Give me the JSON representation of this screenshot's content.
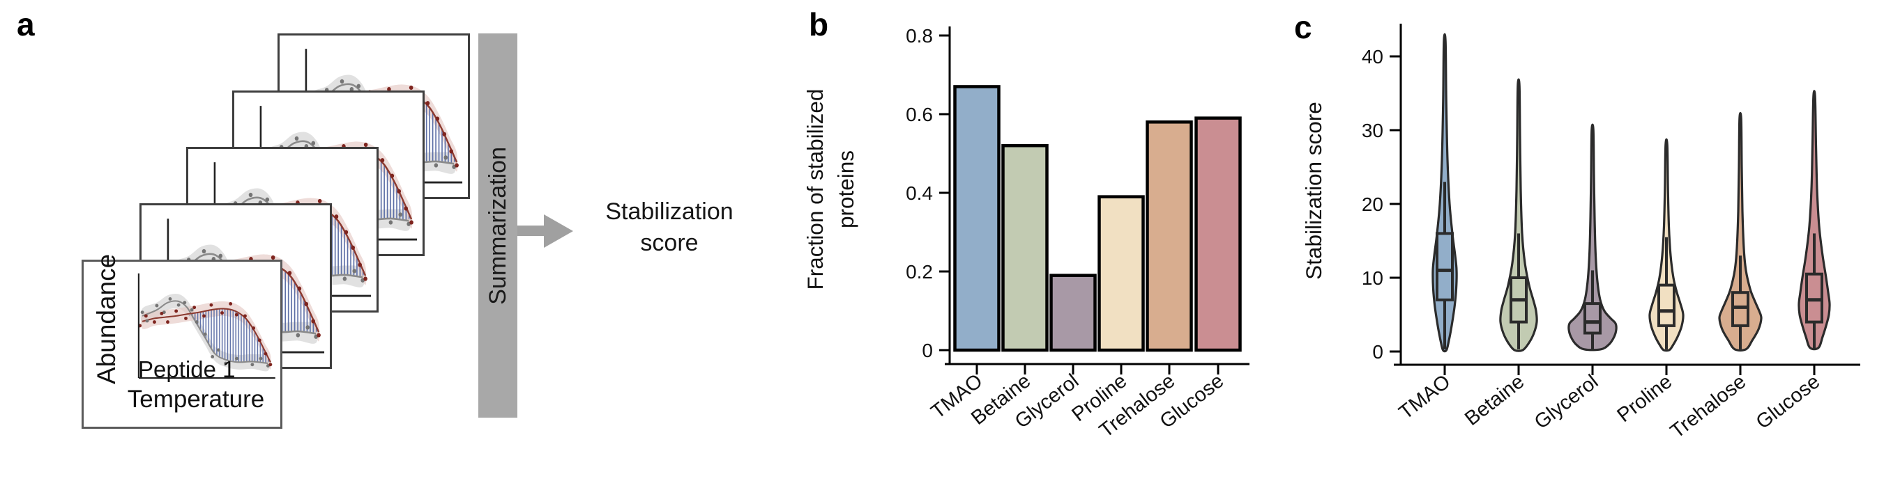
{
  "panels": {
    "a": {
      "label": "a",
      "front_card": {
        "y_axis_label": "Abundance",
        "series_label": "Peptide 1",
        "x_axis_label": "Temperature"
      },
      "card_count": 5,
      "summarization_label": "Summarization",
      "output_label": [
        "Stabilization",
        "score"
      ]
    },
    "b": {
      "label": "b"
    },
    "c": {
      "label": "c"
    }
  },
  "chart_data": [
    {
      "id": "b",
      "type": "bar",
      "title": "",
      "xlabel": "",
      "ylabel": "Fraction of stabilized proteins",
      "ylabel_lines": [
        "Fraction of stabilized",
        "proteins"
      ],
      "categories": [
        "TMAO",
        "Betaine",
        "Glycerol",
        "Proline",
        "Trehalose",
        "Glucose"
      ],
      "values": [
        0.67,
        0.52,
        0.19,
        0.39,
        0.58,
        0.59
      ],
      "yticks": [
        0,
        0.2,
        0.4,
        0.6,
        0.8
      ],
      "ytick_labels": [
        "0",
        "0.2",
        "0.4",
        "0.6",
        "0.8"
      ],
      "ylim": [
        0,
        0.83
      ],
      "grid": false,
      "legend": null,
      "bar_colors": [
        "#92aec9",
        "#c2cbb2",
        "#a899a6",
        "#f1e0c2",
        "#d8ad8f",
        "#ca8e92"
      ]
    },
    {
      "id": "c",
      "type": "violin",
      "title": "",
      "xlabel": "",
      "ylabel": "Stabilization score",
      "categories": [
        "TMAO",
        "Betaine",
        "Glycerol",
        "Proline",
        "Trehalose",
        "Glucose"
      ],
      "yticks": [
        0,
        10,
        20,
        30,
        40
      ],
      "ytick_labels": [
        "0",
        "10",
        "20",
        "30",
        "40"
      ],
      "ylim": [
        0,
        44
      ],
      "grid": false,
      "colors": [
        "#92aec9",
        "#c2cbb2",
        "#a899a6",
        "#f1e0c2",
        "#d8ad8f",
        "#ca8e92"
      ],
      "series": [
        {
          "name": "TMAO",
          "max": 42,
          "whisker_high": 23,
          "q3": 16,
          "median": 11,
          "q1": 7,
          "whisker_low": 0.3,
          "profile": [
            [
              42,
              1.2
            ],
            [
              34,
              2.2
            ],
            [
              26,
              4
            ],
            [
              20,
              7
            ],
            [
              16,
              11
            ],
            [
              13,
              15
            ],
            [
              11,
              17
            ],
            [
              8.5,
              16.5
            ],
            [
              6,
              14
            ],
            [
              3.5,
              10
            ],
            [
              1.5,
              6
            ],
            [
              0.2,
              2.5
            ]
          ]
        },
        {
          "name": "Betaine",
          "max": 36,
          "whisker_high": 16,
          "q3": 10,
          "median": 7,
          "q1": 4,
          "whisker_low": 0.3,
          "profile": [
            [
              36,
              1.2
            ],
            [
              29,
              2
            ],
            [
              22,
              3
            ],
            [
              16,
              5
            ],
            [
              12,
              9
            ],
            [
              9,
              15
            ],
            [
              7,
              21
            ],
            [
              5.5,
              25
            ],
            [
              4,
              26
            ],
            [
              2.5,
              22
            ],
            [
              1.2,
              15
            ],
            [
              0.2,
              6
            ]
          ]
        },
        {
          "name": "Glycerol",
          "max": 30,
          "whisker_high": 11,
          "q3": 6.5,
          "median": 4,
          "q1": 2.5,
          "whisker_low": 0.3,
          "profile": [
            [
              30,
              1.2
            ],
            [
              24,
              2
            ],
            [
              18,
              3
            ],
            [
              13,
              4.5
            ],
            [
              9.5,
              7
            ],
            [
              7,
              11
            ],
            [
              5.5,
              17
            ],
            [
              4.5,
              26
            ],
            [
              3.8,
              33
            ],
            [
              3,
              34
            ],
            [
              2,
              31
            ],
            [
              1,
              24
            ],
            [
              0.3,
              12
            ]
          ]
        },
        {
          "name": "Proline",
          "max": 28,
          "whisker_high": 15.5,
          "q3": 9,
          "median": 5.5,
          "q1": 3.5,
          "whisker_low": 0.3,
          "profile": [
            [
              28,
              1.2
            ],
            [
              22,
              2.2
            ],
            [
              17,
              3.5
            ],
            [
              13,
              6
            ],
            [
              10,
              10
            ],
            [
              8,
              15
            ],
            [
              6.5,
              20
            ],
            [
              5,
              24
            ],
            [
              3.5,
              22
            ],
            [
              2,
              16
            ],
            [
              0.8,
              9
            ],
            [
              0.2,
              4
            ]
          ]
        },
        {
          "name": "Trehalose",
          "max": 31.5,
          "whisker_high": 13,
          "q3": 8,
          "median": 6,
          "q1": 3.5,
          "whisker_low": 0.3,
          "profile": [
            [
              31.5,
              1.2
            ],
            [
              25,
              2
            ],
            [
              19,
              3
            ],
            [
              14,
              5
            ],
            [
              11,
              8
            ],
            [
              8.5,
              14
            ],
            [
              7,
              20
            ],
            [
              5.5,
              27
            ],
            [
              4.5,
              30
            ],
            [
              3,
              26
            ],
            [
              1.5,
              17
            ],
            [
              0.3,
              8
            ]
          ]
        },
        {
          "name": "Glucose",
          "max": 34.5,
          "whisker_high": 16,
          "q3": 10.5,
          "median": 7,
          "q1": 4,
          "whisker_low": 0.3,
          "profile": [
            [
              34.5,
              1.2
            ],
            [
              28,
              2.5
            ],
            [
              22,
              4
            ],
            [
              17,
              7
            ],
            [
              13,
              12
            ],
            [
              10,
              17
            ],
            [
              8,
              20
            ],
            [
              6.5,
              22
            ],
            [
              5,
              21
            ],
            [
              3.5,
              17
            ],
            [
              2,
              12
            ],
            [
              0.5,
              6
            ]
          ]
        }
      ]
    }
  ],
  "colors": {
    "palette": [
      "#92aec9",
      "#c2cbb2",
      "#a899a6",
      "#f1e0c2",
      "#d8ad8f",
      "#ca8e92"
    ],
    "bar_outline": "#000000",
    "violin_outline": "#2b2b2b",
    "summarization_bar": "#a8a8a8",
    "arrow": "#a0a0a0",
    "curve_gray": "#8a8a8a",
    "curve_red": "#8c3a30",
    "hatch_blue": "#5d6fa6"
  }
}
